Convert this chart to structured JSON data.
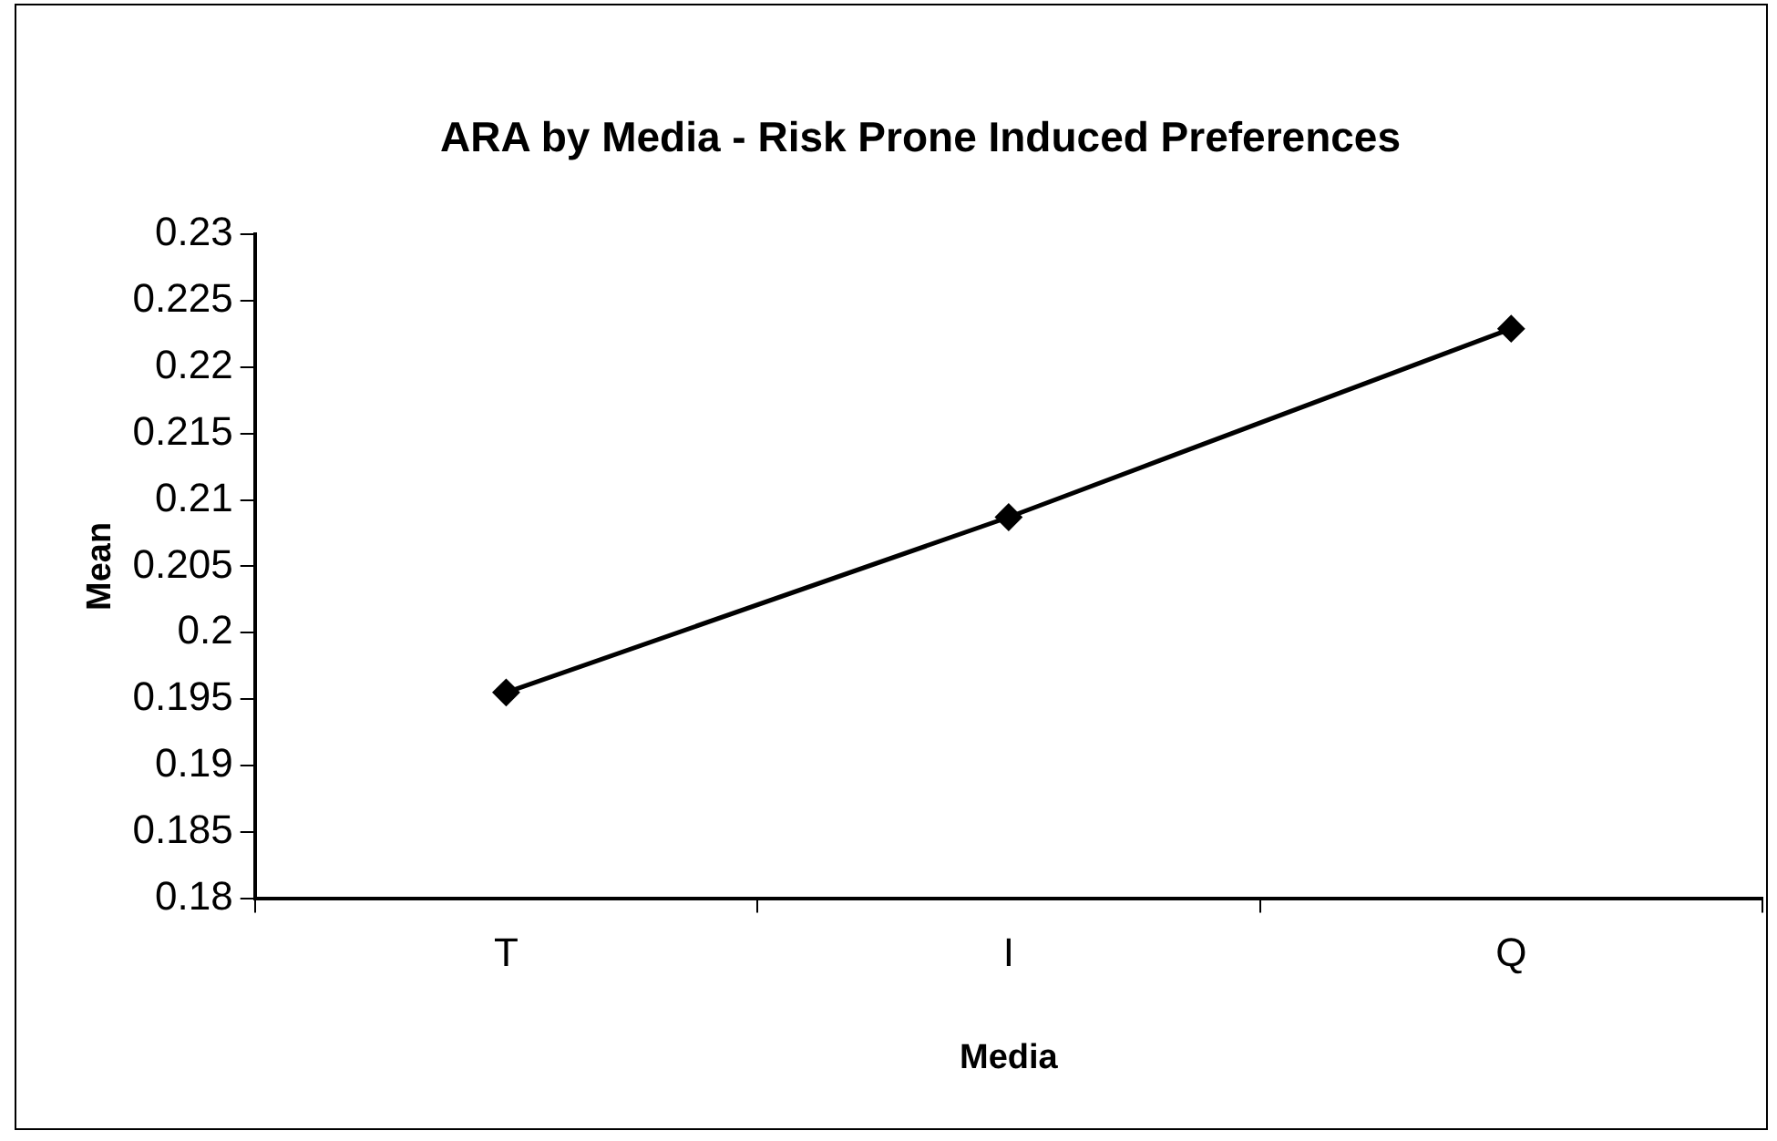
{
  "chart_data": {
    "type": "line",
    "title": "ARA by Media - Risk Prone Induced Preferences",
    "xlabel": "Media",
    "ylabel": "Mean",
    "categories": [
      "T",
      "I",
      "Q"
    ],
    "series": [
      {
        "color": "#000000",
        "values": [
          0.1955,
          0.2087,
          0.2229
        ]
      }
    ],
    "ylim": [
      0.18,
      0.23
    ],
    "yticks": [
      0.18,
      0.185,
      0.19,
      0.195,
      0.2,
      0.205,
      0.21,
      0.215,
      0.22,
      0.225,
      0.23
    ],
    "grid": false,
    "legend": false,
    "marker": "diamond",
    "line_style": "solid"
  }
}
